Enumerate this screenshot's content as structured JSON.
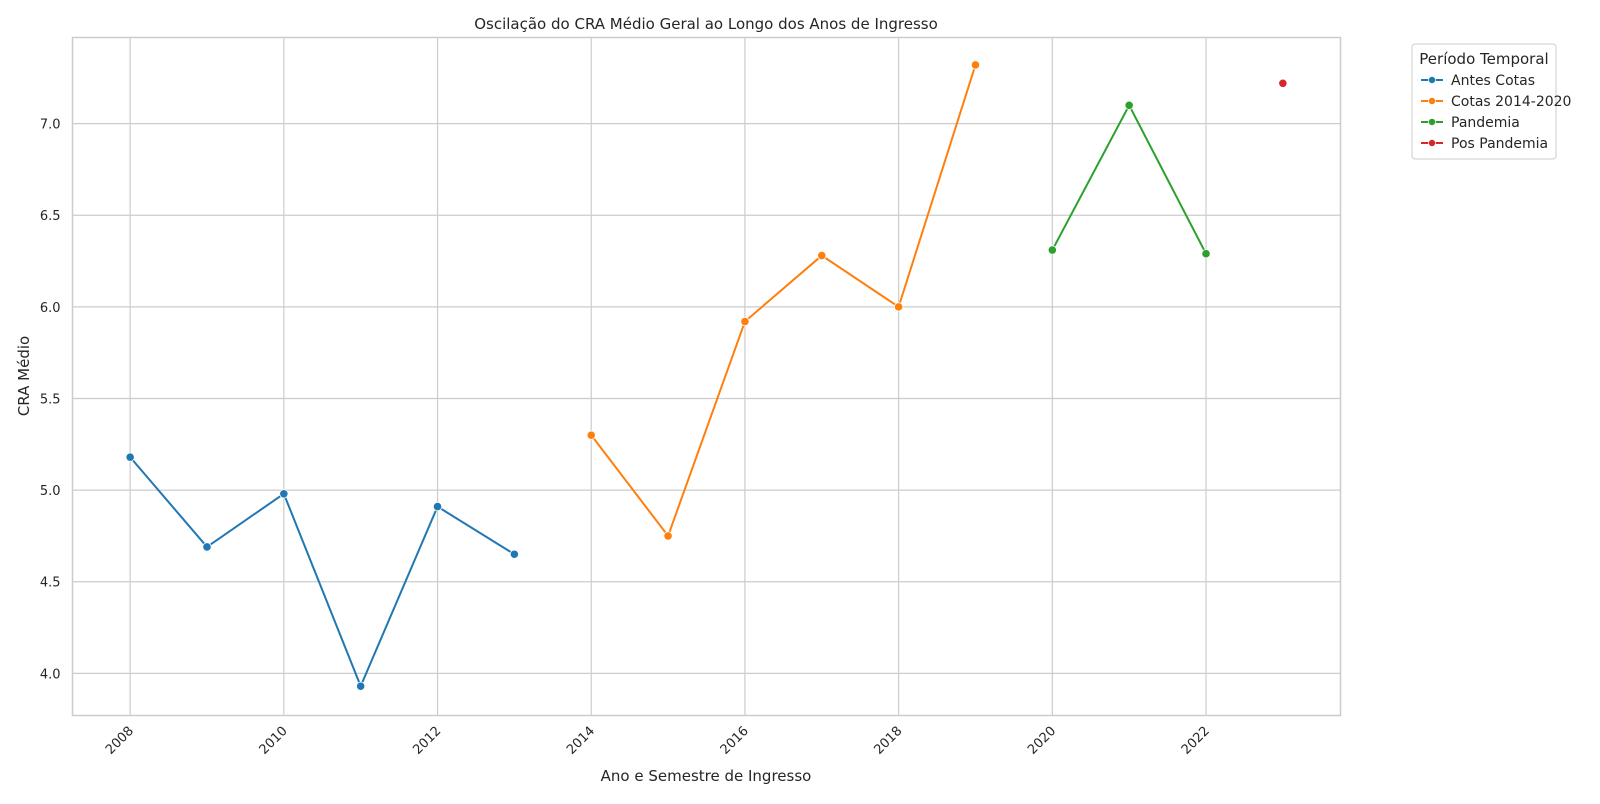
{
  "chart_data": {
    "type": "line",
    "title": "Oscilação do CRA Médio Geral ao Longo dos Anos de Ingresso",
    "xlabel": "Ano e Semestre de Ingresso",
    "ylabel": "CRA Médio",
    "xlim": [
      2007.25,
      2023.75
    ],
    "ylim": [
      3.77,
      7.47
    ],
    "xticks": [
      2008,
      2010,
      2012,
      2014,
      2016,
      2018,
      2020,
      2022
    ],
    "yticks": [
      4.0,
      4.5,
      5.0,
      5.5,
      6.0,
      6.5,
      7.0
    ],
    "grid": true,
    "legend": {
      "title": "Período Temporal",
      "placement": "outside-top-right"
    },
    "series": [
      {
        "name": "Antes Cotas",
        "color": "#1f77b4",
        "x": [
          2008,
          2009,
          2010,
          2011,
          2012,
          2013
        ],
        "y": [
          5.18,
          4.69,
          4.98,
          3.93,
          4.91,
          4.65
        ]
      },
      {
        "name": "Cotas 2014-2020",
        "color": "#ff7f0e",
        "x": [
          2014,
          2015,
          2016,
          2017,
          2018,
          2019
        ],
        "y": [
          5.3,
          4.75,
          5.92,
          6.28,
          6.0,
          7.32
        ]
      },
      {
        "name": "Pandemia",
        "color": "#2ca02c",
        "x": [
          2020,
          2021,
          2022
        ],
        "y": [
          6.31,
          7.1,
          6.29
        ]
      },
      {
        "name": "Pos Pandemia",
        "color": "#d62728",
        "x": [
          2023
        ],
        "y": [
          7.22
        ]
      }
    ]
  }
}
